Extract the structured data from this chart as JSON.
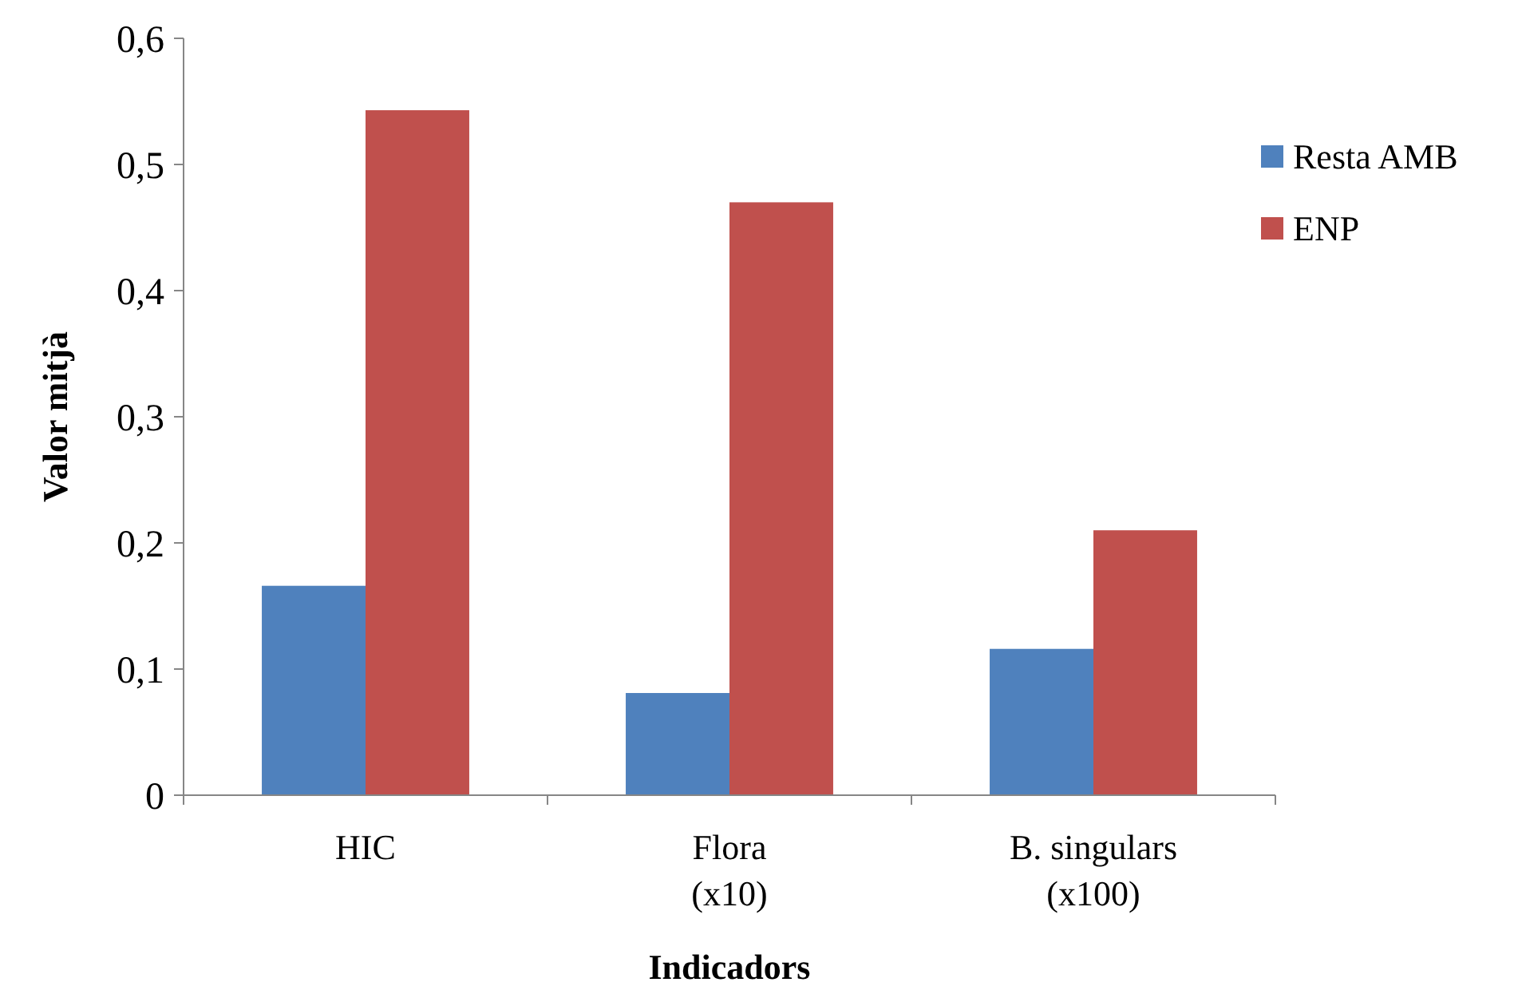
{
  "chart_data": {
    "type": "bar",
    "xlabel": "Indicadors",
    "ylabel": "Valor mitjà",
    "categories": [
      "HIC",
      "Flora\n(x10)",
      "B. singulars\n(x100)"
    ],
    "series": [
      {
        "name": "Resta AMB",
        "color": "#4f81bd",
        "values": [
          0.166,
          0.081,
          0.116
        ]
      },
      {
        "name": "ENP",
        "color": "#c0504d",
        "values": [
          0.543,
          0.47,
          0.21
        ]
      }
    ],
    "ylim": [
      0,
      0.6
    ],
    "yticks": [
      {
        "value": 0,
        "label": "0"
      },
      {
        "value": 0.1,
        "label": "0,1"
      },
      {
        "value": 0.2,
        "label": "0,2"
      },
      {
        "value": 0.3,
        "label": "0,3"
      },
      {
        "value": 0.4,
        "label": "0,4"
      },
      {
        "value": 0.5,
        "label": "0,5"
      },
      {
        "value": 0.6,
        "label": "0,6"
      }
    ],
    "grid": false,
    "legend": "right"
  }
}
